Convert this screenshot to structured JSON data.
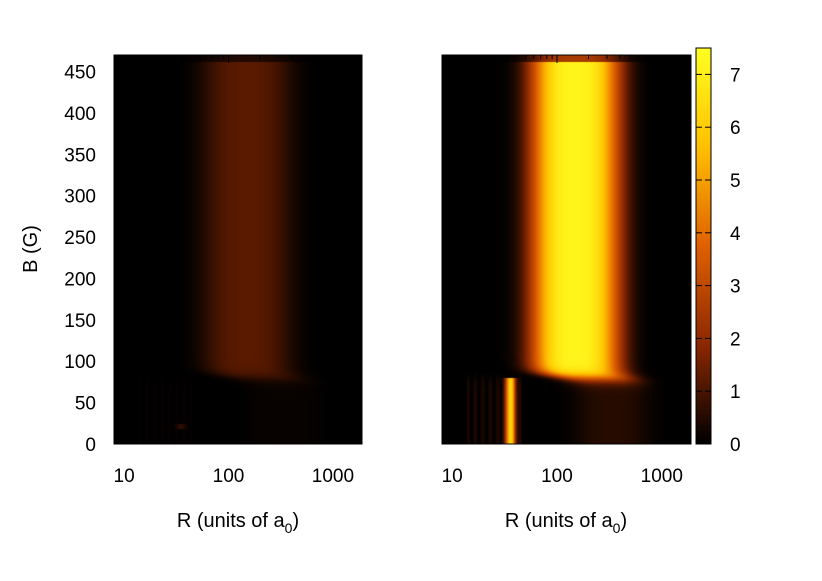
{
  "chart_data": [
    {
      "type": "heatmap",
      "xlabel_main": "R (units of a",
      "xlabel_sub": "0",
      "xlabel_end": ")",
      "ylabel": "B (G)",
      "x_scale": "log",
      "x_ticks": [
        {
          "value": 10,
          "label": "10"
        },
        {
          "value": 100,
          "label": "100"
        },
        {
          "value": 1000,
          "label": "1000"
        }
      ],
      "y_ticks": [
        {
          "value": 0,
          "label": "0"
        },
        {
          "value": 50,
          "label": "50"
        },
        {
          "value": 100,
          "label": "100"
        },
        {
          "value": 150,
          "label": "150"
        },
        {
          "value": 200,
          "label": "200"
        },
        {
          "value": 250,
          "label": "250"
        },
        {
          "value": 300,
          "label": "300"
        },
        {
          "value": 350,
          "label": "350"
        },
        {
          "value": 400,
          "label": "400"
        },
        {
          "value": 450,
          "label": "450"
        }
      ],
      "xlim": [
        8,
        1900
      ],
      "ylim": [
        0,
        470
      ],
      "peak_R": 150,
      "peak_value_high_B": 1.2,
      "peak_value_low_B": 0.1,
      "B_transition": 80,
      "features": [
        {
          "R": 35,
          "B_range": [
            18,
            24
          ],
          "value": 0.6
        }
      ],
      "colorscale": [
        "#000000",
        "#8b2800",
        "#e06000",
        "#ffc000",
        "#ffff20"
      ]
    },
    {
      "type": "heatmap",
      "xlabel_main": "R (units of a",
      "xlabel_sub": "0",
      "xlabel_end": ")",
      "ylabel": "",
      "x_scale": "log",
      "x_ticks": [
        {
          "value": 10,
          "label": "10"
        },
        {
          "value": 100,
          "label": "100"
        },
        {
          "value": 1000,
          "label": "1000"
        }
      ],
      "xlim": [
        8,
        1900
      ],
      "ylim": [
        0,
        470
      ],
      "peak_R": 150,
      "peak_value_high_B": 7.2,
      "peak_value_low_B": 0.5,
      "B_transition": 80,
      "features": [
        {
          "R": 36,
          "B_range": [
            0,
            80
          ],
          "value": 6.2
        }
      ],
      "colorbar": {
        "ticks": [
          {
            "value": 0,
            "label": "0"
          },
          {
            "value": 1,
            "label": "1"
          },
          {
            "value": 2,
            "label": "2"
          },
          {
            "value": 3,
            "label": "3"
          },
          {
            "value": 4,
            "label": "4"
          },
          {
            "value": 5,
            "label": "5"
          },
          {
            "value": 6,
            "label": "6"
          },
          {
            "value": 7,
            "label": "7"
          }
        ],
        "range": [
          0,
          7.5
        ]
      },
      "colorscale": [
        "#000000",
        "#8b2800",
        "#e06000",
        "#ffc000",
        "#ffff20"
      ]
    }
  ]
}
